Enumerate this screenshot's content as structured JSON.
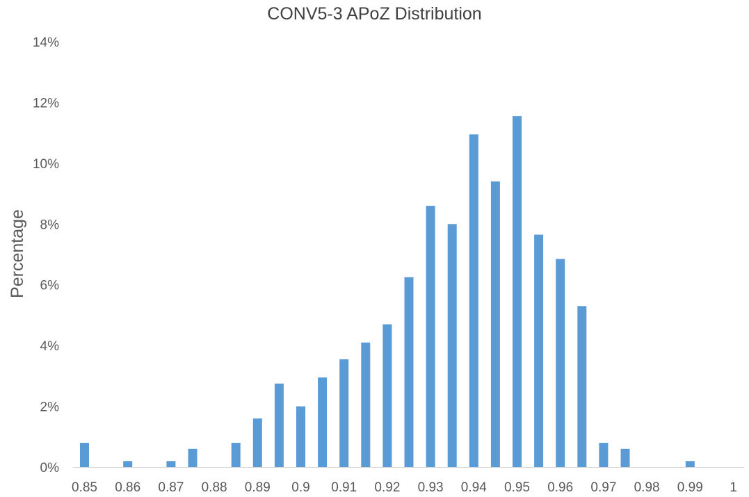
{
  "chart_data": {
    "type": "bar",
    "title": "CONV5-3 APoZ Distribution",
    "xlabel": "",
    "ylabel": "Percentage",
    "ylim": [
      0,
      14
    ],
    "y_ticks": [
      "0%",
      "2%",
      "4%",
      "6%",
      "8%",
      "10%",
      "12%",
      "14%"
    ],
    "x_tick_labels": [
      "0.85",
      "0.86",
      "0.87",
      "0.88",
      "0.89",
      "0.9",
      "0.91",
      "0.92",
      "0.93",
      "0.94",
      "0.95",
      "0.96",
      "0.97",
      "0.98",
      "0.99",
      "1"
    ],
    "grid": false,
    "legend": "none",
    "bar_color": "#5B9BD5",
    "categories": [
      "0.85",
      "0.855",
      "0.86",
      "0.865",
      "0.87",
      "0.875",
      "0.88",
      "0.885",
      "0.89",
      "0.895",
      "0.9",
      "0.905",
      "0.91",
      "0.915",
      "0.92",
      "0.925",
      "0.93",
      "0.935",
      "0.94",
      "0.945",
      "0.95",
      "0.955",
      "0.96",
      "0.965",
      "0.97",
      "0.975",
      "0.98",
      "0.985",
      "0.99",
      "0.995",
      "1"
    ],
    "values": [
      0.8,
      0,
      0.2,
      0,
      0.2,
      0.6,
      0,
      0.8,
      1.6,
      2.75,
      2.0,
      2.95,
      3.55,
      4.1,
      4.7,
      6.25,
      8.6,
      8.0,
      10.95,
      9.4,
      11.55,
      7.65,
      6.85,
      5.3,
      0.8,
      0.6,
      0,
      0,
      0.2,
      0,
      0
    ]
  }
}
